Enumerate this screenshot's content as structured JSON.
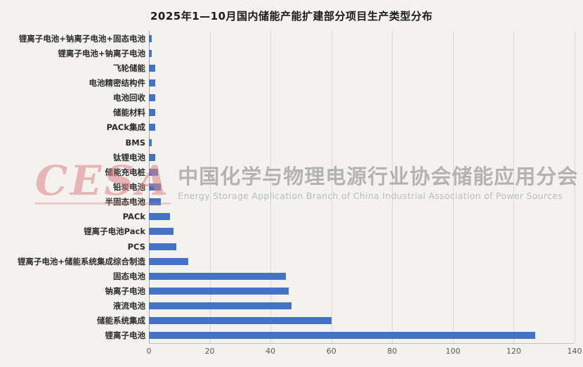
{
  "chart_data": {
    "type": "bar",
    "orientation": "horizontal",
    "title": "2025年1—10月国内储能产能扩建部分项目生产类型分布",
    "categories": [
      "锂离子电池+钠离子电池+固态电池",
      "锂离子电池+钠离子电池",
      "飞轮储能",
      "电池精密结构件",
      "电池回收",
      "储能材料",
      "PACk集成",
      "BMS",
      "钛锂电池",
      "储能充电桩",
      "铅炭电池",
      "半固态电池",
      "PACk",
      "锂离子电池Pack",
      "PCS",
      "锂离子电池+储能系统集成综合制造",
      "固态电池",
      "钠离子电池",
      "液流电池",
      "储能系统集成",
      "锂离子电池"
    ],
    "values": [
      1,
      1,
      2,
      2,
      2,
      2,
      2,
      1,
      2,
      3,
      4,
      4,
      7,
      8,
      9,
      13,
      45,
      46,
      47,
      60,
      127
    ],
    "xlabel": "",
    "ylabel": "",
    "xlim": [
      0,
      140
    ],
    "xticks": [
      0,
      20,
      40,
      60,
      80,
      100,
      120,
      140
    ],
    "grid": "vertical",
    "legend": "none",
    "bar_color": "#4472c4"
  },
  "watermark": {
    "logo": "CESA",
    "cn": "中国化学与物理电源行业协会储能应用分会",
    "en": "Energy Storage Application Branch of China Industrial Association of Power Sources"
  }
}
